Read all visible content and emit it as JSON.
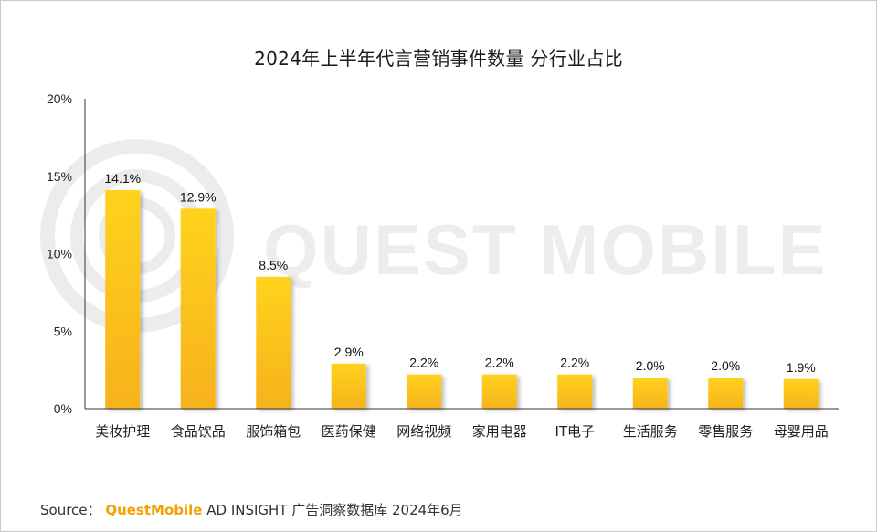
{
  "title": "2024年上半年代言营销事件数量 分行业占比",
  "source": {
    "prefix": "Source：",
    "brand": "QuestMobile",
    "rest": "AD INSIGHT 广告洞察数据库 2024年6月"
  },
  "watermark_text": "QUEST MOBILE",
  "colors": {
    "bar_top": "#ffd21a",
    "bar_bottom": "#f7b21c",
    "axis": "#333333",
    "brand": "#f2a100"
  },
  "chart_data": {
    "type": "bar",
    "title": "2024年上半年代言营销事件数量 分行业占比",
    "categories": [
      "美妆护理",
      "食品饮品",
      "服饰箱包",
      "医药保健",
      "网络视频",
      "家用电器",
      "IT电子",
      "生活服务",
      "零售服务",
      "母婴用品"
    ],
    "values": [
      14.1,
      12.9,
      8.5,
      2.9,
      2.2,
      2.2,
      2.2,
      2.0,
      2.0,
      1.9
    ],
    "value_labels": [
      "14.1%",
      "12.9%",
      "8.5%",
      "2.9%",
      "2.2%",
      "2.2%",
      "2.2%",
      "2.0%",
      "2.0%",
      "1.9%"
    ],
    "y_ticks": [
      0,
      5,
      10,
      15,
      20
    ],
    "y_tick_labels": [
      "0%",
      "5%",
      "10%",
      "15%",
      "20%"
    ],
    "ylim": [
      0,
      20
    ],
    "xlabel": "",
    "ylabel": "",
    "grid": false,
    "legend": "none"
  }
}
